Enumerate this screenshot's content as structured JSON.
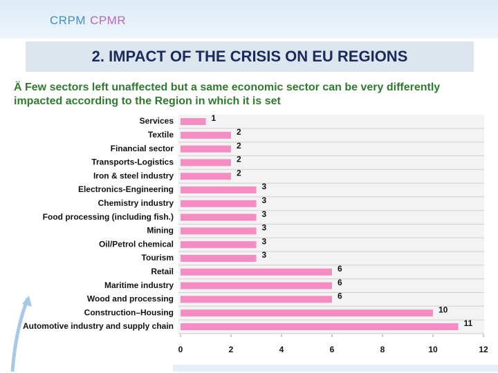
{
  "header": {
    "logo_left": "CRPM",
    "logo_right": "CPMR"
  },
  "title": "2. IMPACT OF THE CRISIS ON EU REGIONS",
  "bullet": "Ä Few sectors left unaffected but a same economic sector can be very differently impacted according to the Region in which it is set",
  "chart_data": {
    "type": "bar",
    "orientation": "horizontal",
    "categories": [
      "Services",
      "Textile",
      "Financial sector",
      "Transports-Logistics",
      "Iron & steel industry",
      "Electronics-Engineering",
      "Chemistry industry",
      "Food processing (including fish.)",
      "Mining",
      "Oil/Petrol chemical",
      "Tourism",
      "Retail",
      "Maritime industry",
      "Wood and processing",
      "Construction–Housing",
      "Automotive industry and supply chain"
    ],
    "values": [
      1,
      2,
      2,
      2,
      2,
      3,
      3,
      3,
      3,
      3,
      3,
      6,
      6,
      6,
      10,
      11
    ],
    "color": "#f58cc4",
    "xlim": [
      0,
      12
    ],
    "xticks": [
      0,
      2,
      4,
      6,
      8,
      10,
      12
    ],
    "grid": true
  }
}
